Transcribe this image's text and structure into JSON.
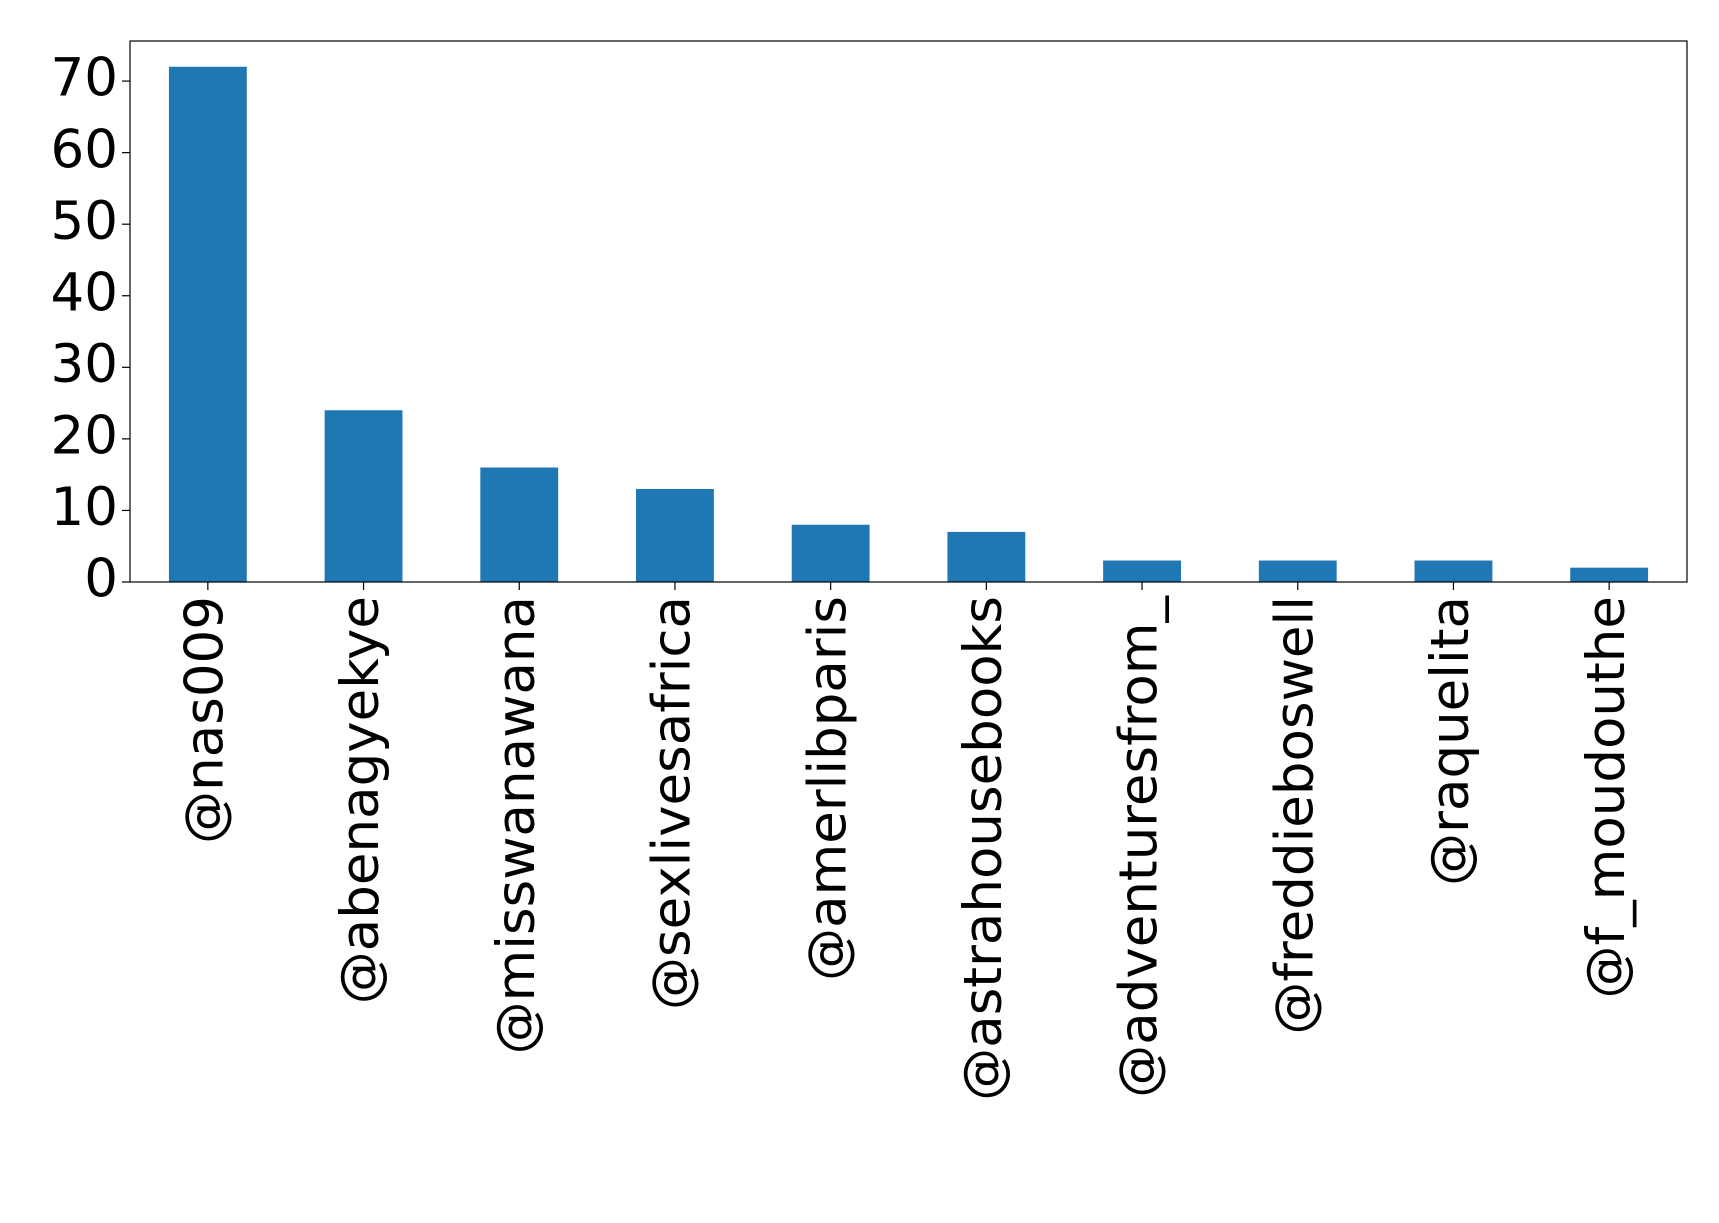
{
  "chart_data": {
    "type": "bar",
    "categories": [
      "@nas009",
      "@abenagyekye",
      "@misswanawana",
      "@sexlivesafrica",
      "@amerlibparis",
      "@astrahousebooks",
      "@adventuresfrom_",
      "@freddieboswell",
      "@raquelita",
      "@f_moudouthe"
    ],
    "values": [
      72,
      24,
      16,
      13,
      8,
      7,
      3,
      3,
      3,
      2
    ],
    "color": "#1f77b4",
    "ylim": [
      0,
      75.6
    ],
    "yticks": [
      0,
      10,
      20,
      30,
      40,
      50,
      60,
      70
    ],
    "grid": false
  }
}
